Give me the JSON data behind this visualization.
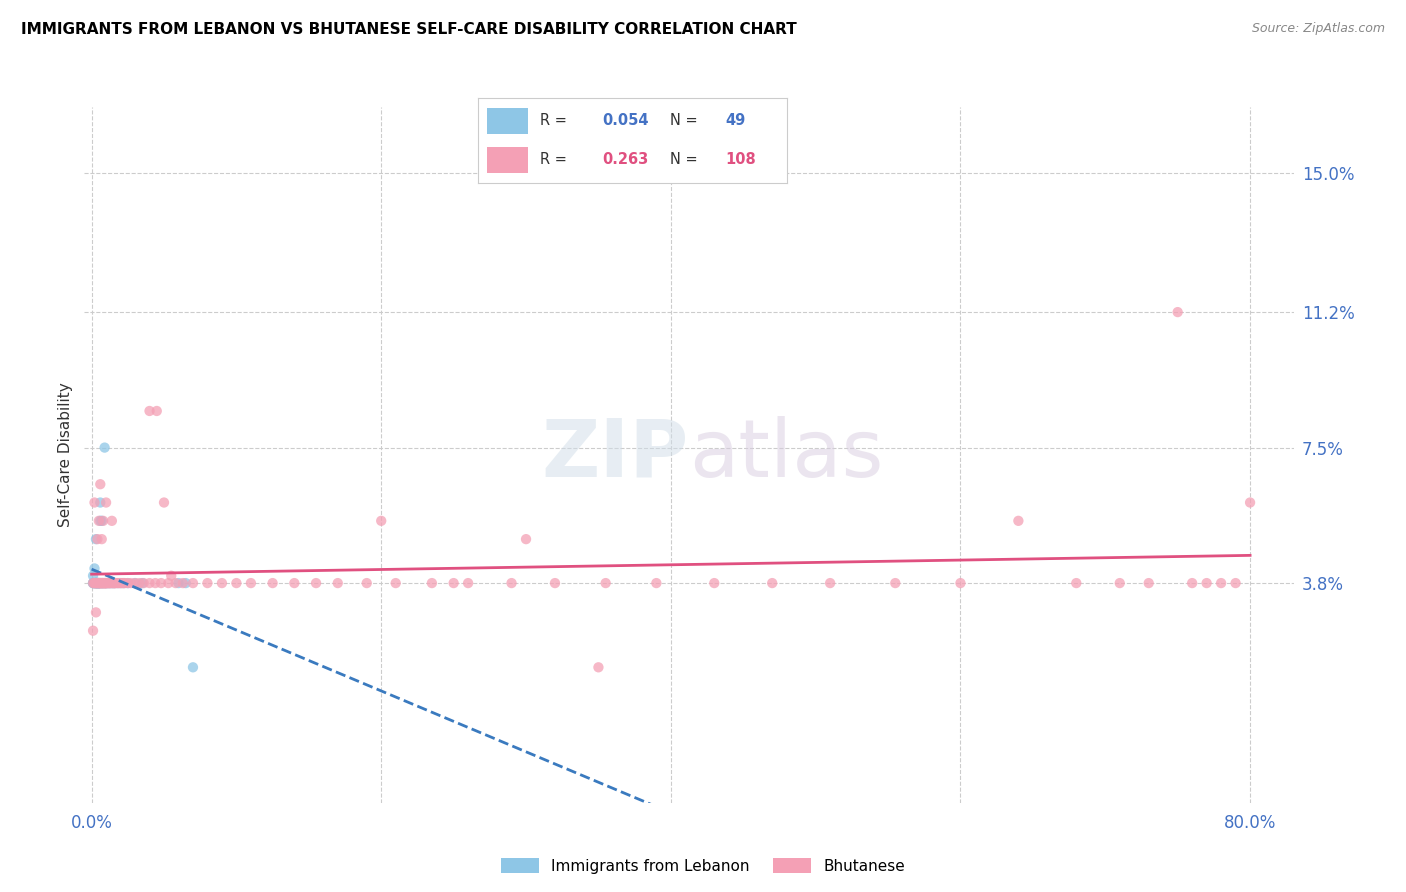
{
  "title": "IMMIGRANTS FROM LEBANON VS BHUTANESE SELF-CARE DISABILITY CORRELATION CHART",
  "source": "Source: ZipAtlas.com",
  "ylabel": "Self-Care Disability",
  "yticks_labels": [
    "15.0%",
    "11.2%",
    "7.5%",
    "3.8%"
  ],
  "ytick_vals": [
    0.15,
    0.112,
    0.075,
    0.038
  ],
  "xticks_labels": [
    "0.0%",
    "80.0%"
  ],
  "xtick_vals": [
    0.0,
    0.8
  ],
  "xlim": [
    -0.005,
    0.83
  ],
  "ylim": [
    -0.022,
    0.168
  ],
  "legend1_R": "0.054",
  "legend1_N": "49",
  "legend2_R": "0.263",
  "legend2_N": "108",
  "color_blue": "#8ec6e6",
  "color_pink": "#f4a0b5",
  "color_blue_line": "#3a7abf",
  "color_pink_line": "#e05080",
  "color_axis": "#4472C4",
  "background_color": "#ffffff",
  "lebanon_x": [
    0.001,
    0.001,
    0.001,
    0.002,
    0.002,
    0.002,
    0.002,
    0.003,
    0.003,
    0.003,
    0.003,
    0.003,
    0.004,
    0.004,
    0.004,
    0.004,
    0.005,
    0.005,
    0.005,
    0.005,
    0.005,
    0.006,
    0.006,
    0.006,
    0.006,
    0.007,
    0.007,
    0.007,
    0.008,
    0.008,
    0.009,
    0.009,
    0.01,
    0.01,
    0.011,
    0.012,
    0.013,
    0.014,
    0.015,
    0.016,
    0.018,
    0.02,
    0.022,
    0.025,
    0.03,
    0.035,
    0.06,
    0.065,
    0.07
  ],
  "lebanon_y": [
    0.038,
    0.038,
    0.04,
    0.038,
    0.038,
    0.038,
    0.042,
    0.038,
    0.038,
    0.038,
    0.038,
    0.05,
    0.038,
    0.038,
    0.038,
    0.038,
    0.038,
    0.038,
    0.038,
    0.038,
    0.038,
    0.038,
    0.038,
    0.055,
    0.06,
    0.038,
    0.038,
    0.055,
    0.038,
    0.038,
    0.038,
    0.075,
    0.038,
    0.038,
    0.038,
    0.038,
    0.038,
    0.038,
    0.038,
    0.038,
    0.038,
    0.038,
    0.038,
    0.038,
    0.038,
    0.038,
    0.038,
    0.038,
    0.015
  ],
  "bhutanese_x": [
    0.001,
    0.001,
    0.002,
    0.002,
    0.002,
    0.003,
    0.003,
    0.003,
    0.003,
    0.004,
    0.004,
    0.004,
    0.004,
    0.005,
    0.005,
    0.005,
    0.005,
    0.006,
    0.006,
    0.006,
    0.006,
    0.006,
    0.007,
    0.007,
    0.007,
    0.007,
    0.008,
    0.008,
    0.008,
    0.008,
    0.009,
    0.009,
    0.009,
    0.009,
    0.01,
    0.01,
    0.01,
    0.01,
    0.011,
    0.011,
    0.012,
    0.012,
    0.013,
    0.013,
    0.014,
    0.014,
    0.015,
    0.015,
    0.016,
    0.016,
    0.017,
    0.018,
    0.019,
    0.02,
    0.021,
    0.022,
    0.023,
    0.025,
    0.027,
    0.03,
    0.033,
    0.036,
    0.04,
    0.044,
    0.048,
    0.053,
    0.058,
    0.063,
    0.07,
    0.08,
    0.09,
    0.1,
    0.11,
    0.125,
    0.14,
    0.155,
    0.17,
    0.19,
    0.21,
    0.235,
    0.26,
    0.29,
    0.32,
    0.355,
    0.39,
    0.43,
    0.47,
    0.51,
    0.555,
    0.6,
    0.64,
    0.68,
    0.71,
    0.73,
    0.75,
    0.76,
    0.77,
    0.78,
    0.79,
    0.8,
    0.04,
    0.045,
    0.05,
    0.055,
    0.2,
    0.25,
    0.3,
    0.35
  ],
  "bhutanese_y": [
    0.038,
    0.025,
    0.038,
    0.038,
    0.06,
    0.038,
    0.038,
    0.038,
    0.03,
    0.038,
    0.038,
    0.038,
    0.05,
    0.038,
    0.038,
    0.038,
    0.055,
    0.038,
    0.038,
    0.038,
    0.038,
    0.065,
    0.038,
    0.038,
    0.038,
    0.05,
    0.038,
    0.038,
    0.055,
    0.038,
    0.038,
    0.038,
    0.038,
    0.038,
    0.038,
    0.038,
    0.038,
    0.06,
    0.038,
    0.038,
    0.038,
    0.038,
    0.038,
    0.038,
    0.038,
    0.055,
    0.038,
    0.038,
    0.038,
    0.038,
    0.038,
    0.038,
    0.038,
    0.038,
    0.038,
    0.038,
    0.038,
    0.038,
    0.038,
    0.038,
    0.038,
    0.038,
    0.038,
    0.038,
    0.038,
    0.038,
    0.038,
    0.038,
    0.038,
    0.038,
    0.038,
    0.038,
    0.038,
    0.038,
    0.038,
    0.038,
    0.038,
    0.038,
    0.038,
    0.038,
    0.038,
    0.038,
    0.038,
    0.038,
    0.038,
    0.038,
    0.038,
    0.038,
    0.038,
    0.038,
    0.055,
    0.038,
    0.038,
    0.038,
    0.112,
    0.038,
    0.038,
    0.038,
    0.038,
    0.06,
    0.085,
    0.085,
    0.06,
    0.04,
    0.055,
    0.038,
    0.05,
    0.015
  ]
}
